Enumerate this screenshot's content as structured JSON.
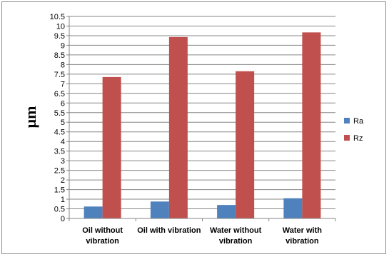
{
  "chart_data": {
    "type": "bar",
    "title": "",
    "xlabel": "",
    "ylabel": "µm",
    "ylim": [
      0,
      10.5
    ],
    "ytick_step": 0.5,
    "yticks": [
      "0",
      "0.5",
      "1",
      "1.5",
      "2",
      "2.5",
      "3",
      "3.5",
      "4",
      "4.5",
      "5",
      "5.5",
      "6",
      "6.5",
      "7",
      "7.5",
      "8",
      "8.5",
      "9",
      "9.5",
      "10",
      "10.5"
    ],
    "grid": "horizontal",
    "legend_position": "right",
    "categories": [
      [
        "Oil without",
        "vibration"
      ],
      [
        "Oil with vibration"
      ],
      [
        "Water without",
        "vibration"
      ],
      [
        "Water with",
        "vibration"
      ]
    ],
    "series": [
      {
        "name": "Ra",
        "color": "#4f81bd",
        "values": [
          0.62,
          0.88,
          0.7,
          1.05
        ]
      },
      {
        "name": "Rz",
        "color": "#c0504d",
        "values": [
          7.35,
          9.43,
          7.65,
          9.67
        ]
      }
    ]
  }
}
